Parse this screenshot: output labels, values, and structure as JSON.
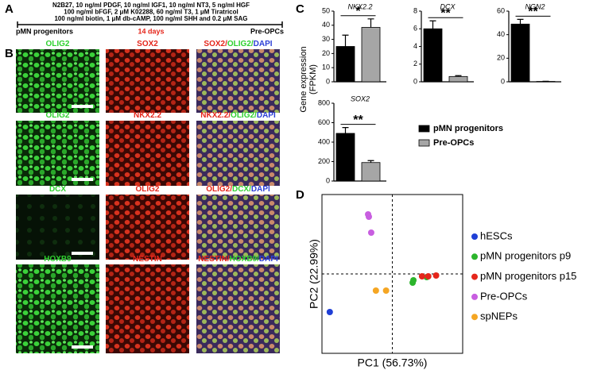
{
  "panel_a": {
    "label": "A",
    "conditions": [
      "N2B27, 10 ng/ml PDGF, 10 ng/ml IGF1, 10 ng/ml NT3, 5 ng/ml HGF",
      "100 ng/ml bFGF, 2 μM K02288, 60 ng/ml T3, 1 μM Tiratricol",
      "100 ng/ml biotin, 1 μM db-cAMP, 100 ng/ml SHH and 0.2 μM SAG"
    ],
    "start": "pMN progenitors",
    "duration": "14 days",
    "end": "Pre-OPCs"
  },
  "panel_b": {
    "label": "B",
    "rows": [
      [
        [
          {
            "text": "OLIG2",
            "color": "#2fd12f"
          }
        ],
        [
          {
            "text": "SOX2",
            "color": "#e5261b"
          }
        ],
        [
          {
            "text": "SOX2/",
            "color": "#e5261b"
          },
          {
            "text": "OLIG2/",
            "color": "#2fd12f"
          },
          {
            "text": "DAPI",
            "color": "#2c3fd6"
          }
        ]
      ],
      [
        [
          {
            "text": "OLIG2",
            "color": "#2fd12f"
          }
        ],
        [
          {
            "text": "NKX2.2",
            "color": "#e5261b"
          }
        ],
        [
          {
            "text": "NKX2.2/",
            "color": "#e5261b"
          },
          {
            "text": "OLIG2/",
            "color": "#2fd12f"
          },
          {
            "text": "DAPI",
            "color": "#2c3fd6"
          }
        ]
      ],
      [
        [
          {
            "text": "DCX",
            "color": "#2fd12f"
          }
        ],
        [
          {
            "text": "OLIG2",
            "color": "#e5261b"
          }
        ],
        [
          {
            "text": "OLIG2/",
            "color": "#e5261b"
          },
          {
            "text": "DCX/",
            "color": "#2fd12f"
          },
          {
            "text": "DAPI",
            "color": "#2c3fd6"
          }
        ]
      ],
      [
        [
          {
            "text": "HOXB9",
            "color": "#2fd12f"
          }
        ],
        [
          {
            "text": "NESTIN",
            "color": "#e5261b"
          }
        ],
        [
          {
            "text": "NESTIN/",
            "color": "#e5261b"
          },
          {
            "text": "HOXB9/",
            "color": "#2fd12f"
          },
          {
            "text": "DAPI",
            "color": "#2c3fd6"
          }
        ]
      ]
    ]
  },
  "chart_data": [
    {
      "type": "bar",
      "panel": "C",
      "title": "NKX2.2",
      "ylabel": [
        "Gene expression",
        "(FPKM)"
      ],
      "legend": true,
      "series": [
        {
          "name": "pMN progenitors",
          "color": "#000000",
          "values": [
            25
          ],
          "errors": [
            8
          ]
        },
        {
          "name": "Pre-OPCs",
          "color": "#a6a6a6",
          "values": [
            38.5
          ],
          "errors": [
            6
          ]
        }
      ],
      "ylim": [
        0,
        50
      ],
      "yticks": [
        0,
        10,
        20,
        30,
        40,
        50
      ],
      "annotation": "*"
    },
    {
      "type": "bar",
      "title": "DCX",
      "series": [
        {
          "color": "#000000",
          "values": [
            6.0
          ],
          "errors": [
            0.9
          ]
        },
        {
          "color": "#a6a6a6",
          "values": [
            0.6
          ],
          "errors": [
            0.1
          ]
        }
      ],
      "ylim": [
        0,
        8
      ],
      "yticks": [
        0,
        2,
        4,
        6,
        8
      ],
      "annotation": "**"
    },
    {
      "type": "bar",
      "title": "NGN2",
      "series": [
        {
          "color": "#000000",
          "values": [
            49
          ],
          "errors": [
            4
          ]
        },
        {
          "color": "#a6a6a6",
          "values": [
            0.3
          ],
          "errors": [
            0.1
          ]
        }
      ],
      "ylim": [
        0,
        60
      ],
      "yticks": [
        0,
        20,
        40,
        60
      ],
      "annotation": "**"
    },
    {
      "type": "bar",
      "title": "SOX2",
      "series": [
        {
          "color": "#000000",
          "values": [
            490
          ],
          "errors": [
            60
          ]
        },
        {
          "color": "#a6a6a6",
          "values": [
            190
          ],
          "errors": [
            20
          ]
        }
      ],
      "ylim": [
        0,
        800
      ],
      "yticks": [
        0,
        200,
        400,
        600,
        800
      ],
      "annotation": "**"
    },
    {
      "type": "scatter",
      "panel": "D",
      "xlabel": "PC1 (56.73%)",
      "ylabel": "PC2 (22.99%)",
      "xlim": [
        -90,
        90
      ],
      "ylim": [
        -100,
        100
      ],
      "xref": 0,
      "yref": 0,
      "series": [
        {
          "name": "hESCs",
          "color": "#1f3fd6",
          "x": [
            -80
          ],
          "y": [
            -48
          ]
        },
        {
          "name": "pMN progenitors p9",
          "color": "#2cb52c",
          "x": [
            26,
            27,
            44
          ],
          "y": [
            -11,
            -8,
            -4
          ]
        },
        {
          "name": "pMN progenitors p15",
          "color": "#e5261b",
          "x": [
            38,
            46,
            56
          ],
          "y": [
            -3,
            -3,
            -2
          ]
        },
        {
          "name": "Pre-OPCs",
          "color": "#c85ee0",
          "x": [
            -31,
            -30,
            -27
          ],
          "y": [
            75,
            72,
            52
          ]
        },
        {
          "name": "spNEPs",
          "color": "#f5a623",
          "x": [
            -21,
            -8
          ],
          "y": [
            -21,
            -21
          ]
        }
      ]
    }
  ]
}
